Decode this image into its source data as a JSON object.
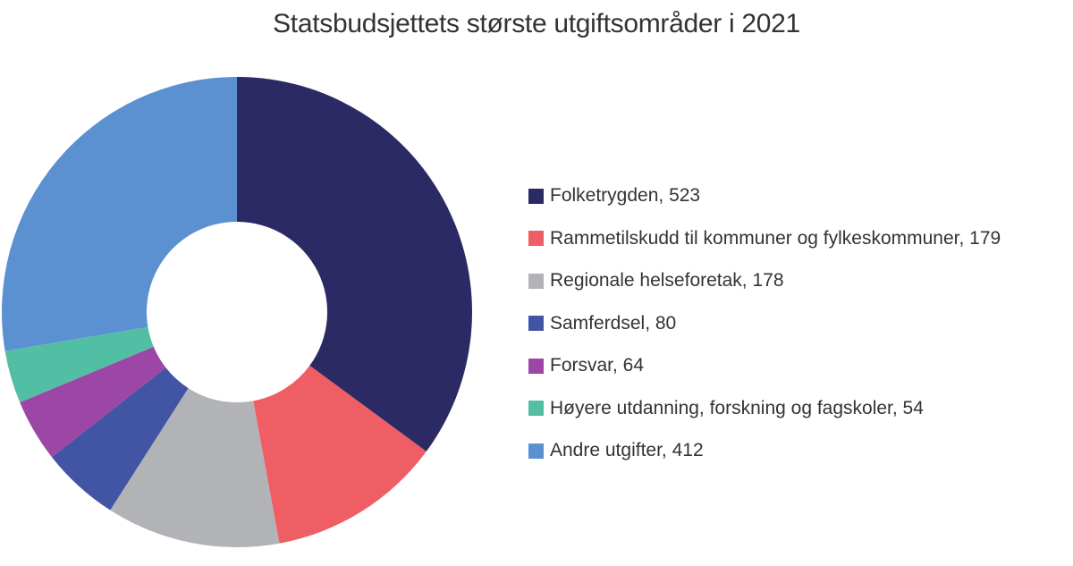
{
  "chart_data": {
    "type": "pie",
    "subtype": "donut",
    "title": "Statsbudsjettets største utgiftsområder i 2021",
    "legend_position": "right",
    "start_angle_deg": 0,
    "direction": "clockwise",
    "series": [
      {
        "name": "Folketrygden",
        "value": 523,
        "color": "#2B2A64"
      },
      {
        "name": "Rammetilskudd til kommuner og fylkeskommuner",
        "value": 179,
        "color": "#EF5D65"
      },
      {
        "name": "Regionale helseforetak",
        "value": 178,
        "color": "#B1B3B6"
      },
      {
        "name": "Samferdsel",
        "value": 80,
        "color": "#4254A4"
      },
      {
        "name": "Forsvar",
        "value": 64,
        "color": "#9C46A5"
      },
      {
        "name": "Høyere utdanning, forskning og fagskoler",
        "value": 54,
        "color": "#52BFA5"
      },
      {
        "name": "Andre utgifter",
        "value": 412,
        "color": "#5B90D1"
      }
    ]
  },
  "colors": {
    "background": "#FFFFFF",
    "text": "#333333"
  }
}
